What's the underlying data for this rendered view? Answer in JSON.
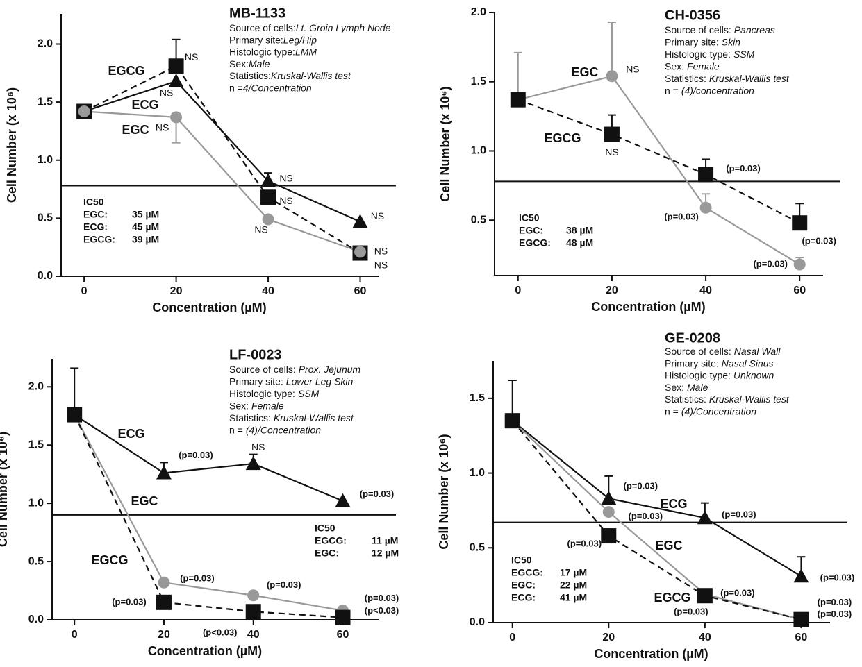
{
  "chart_data": [
    {
      "type": "line",
      "title": "MB-1133",
      "info": [
        {
          "label": "Source of cells:",
          "value": "Lt. Groin Lymph Node"
        },
        {
          "label": "Primary site:",
          "value": "Leg/Hip"
        },
        {
          "label": "Histologic type:",
          "value": "LMM"
        },
        {
          "label": "Sex:",
          "value": "Male"
        },
        {
          "label": "Statistics:",
          "value": "Kruskal-Wallis test"
        },
        {
          "label": "n =",
          "value": "4/Concentration"
        }
      ],
      "ic50_title": "IC50",
      "ic50": [
        {
          "name": "EGC:",
          "value": "35 µM"
        },
        {
          "name": "ECG:",
          "value": "45 µM"
        },
        {
          "name": "EGCG:",
          "value": "39 µM"
        }
      ],
      "x_label": "Concentration (µM)",
      "y_label": "Cell Number (x 10⁶)",
      "x": [
        0,
        20,
        40,
        60
      ],
      "series": [
        {
          "name": "EGCG",
          "color": "#111111",
          "marker": "square",
          "dash": true,
          "values": [
            1.42,
            1.81,
            0.68,
            0.2
          ],
          "errors": [
            null,
            0.23,
            null,
            null
          ],
          "point_labels": [
            null,
            "NS",
            "NS",
            "NS"
          ]
        },
        {
          "name": "ECG",
          "color": "#111111",
          "marker": "triangle",
          "dash": false,
          "values": [
            1.42,
            1.68,
            0.82,
            0.47
          ],
          "errors": [
            null,
            null,
            0.07,
            null
          ],
          "point_labels": [
            null,
            "NS",
            "NS",
            "NS"
          ]
        },
        {
          "name": "EGC",
          "color": "#999999",
          "marker": "circle",
          "dash": false,
          "error_side": "down",
          "values": [
            1.42,
            1.37,
            0.49,
            0.21
          ],
          "errors": [
            null,
            0.22,
            null,
            null
          ],
          "point_labels": [
            null,
            "NS",
            "NS",
            "NS"
          ]
        }
      ],
      "reference_line": 0.78,
      "xlim": [
        -5,
        64
      ],
      "ylim": [
        0,
        2.26
      ],
      "xticks": [
        0,
        20,
        40,
        60
      ],
      "yticks": [
        {
          "value": 0,
          "label": "0.0"
        },
        {
          "value": 0.5,
          "label": "0.5"
        },
        {
          "value": 1,
          "label": "1.0"
        },
        {
          "value": 1.5,
          "label": "1.5"
        },
        {
          "value": 2,
          "label": "2.0"
        }
      ]
    },
    {
      "type": "line",
      "title": "CH-0356",
      "info": [
        {
          "label": "Source of cells:",
          "value": "Pancreas"
        },
        {
          "label": "Primary site:",
          "value": "Skin"
        },
        {
          "label": "Histologic type:",
          "value": "SSM"
        },
        {
          "label": "Sex:",
          "value": "Female"
        },
        {
          "label": "Statistics:",
          "value": "Kruskal-Wallis test"
        },
        {
          "label": "n =",
          "value": "(4)/concentration"
        }
      ],
      "ic50_title": "IC50",
      "ic50": [
        {
          "name": "EGC:",
          "value": "38 µM"
        },
        {
          "name": "EGCG:",
          "value": "48 µM"
        }
      ],
      "x_label": "Concentration (µM)",
      "y_label": "Cell Number (x 10⁶)",
      "x": [
        0,
        20,
        40,
        60
      ],
      "series": [
        {
          "name": "EGC",
          "color": "#999999",
          "marker": "circle",
          "dash": false,
          "values": [
            1.37,
            1.54,
            0.59,
            0.18
          ],
          "errors": [
            0.34,
            0.39,
            0.1,
            0.05
          ],
          "point_labels": [
            null,
            "NS",
            "(p=0.03)",
            "(p=0.03)"
          ]
        },
        {
          "name": "EGCG",
          "color": "#111111",
          "marker": "square",
          "dash": true,
          "values": [
            1.37,
            1.12,
            0.83,
            0.48
          ],
          "errors": [
            null,
            0.14,
            0.11,
            0.14
          ],
          "point_labels": [
            null,
            "NS",
            "(p=0.03)",
            "(p=0.03)"
          ]
        }
      ],
      "reference_line": 0.78,
      "xlim": [
        -5,
        65
      ],
      "ylim": [
        0.1,
        2.0
      ],
      "xticks": [
        0,
        20,
        40,
        60
      ],
      "yticks": [
        {
          "value": 0.5,
          "label": "0.5"
        },
        {
          "value": 1,
          "label": "1.0"
        },
        {
          "value": 1.5,
          "label": "1.5"
        },
        {
          "value": 2,
          "label": "2.0"
        }
      ]
    },
    {
      "type": "line",
      "title": "LF-0023",
      "info": [
        {
          "label": "Source of cells:",
          "value": "Prox. Jejunum"
        },
        {
          "label": "Primary site:",
          "value": "Lower Leg Skin"
        },
        {
          "label": "Histologic type:",
          "value": "SSM"
        },
        {
          "label": "Sex:",
          "value": "Female"
        },
        {
          "label": "Statistics:",
          "value": "Kruskal-Wallis test"
        },
        {
          "label": "n =",
          "value": "(4)/Concentration"
        }
      ],
      "ic50_title": "IC50",
      "ic50": [
        {
          "name": "EGCG:",
          "value": "11 µM"
        },
        {
          "name": "EGC:",
          "value": "12 µM"
        }
      ],
      "x_label": "Concentration (µM)",
      "y_label": "Cell Number (x 10⁶)",
      "x": [
        0,
        20,
        40,
        60
      ],
      "series": [
        {
          "name": "ECG",
          "color": "#111111",
          "marker": "triangle",
          "dash": false,
          "values": [
            1.76,
            1.26,
            1.34,
            1.02
          ],
          "errors": [
            0.4,
            0.09,
            0.08,
            null
          ],
          "point_labels": [
            null,
            "(p=0.03)",
            "NS",
            "(p=0.03)"
          ]
        },
        {
          "name": "EGC",
          "color": "#999999",
          "marker": "circle",
          "dash": false,
          "values": [
            1.76,
            0.32,
            0.21,
            0.08
          ],
          "errors": [
            null,
            null,
            null,
            null
          ],
          "point_labels": [
            null,
            "(p=0.03)",
            "(p=0.03)",
            "(p=0.03)"
          ]
        },
        {
          "name": "EGCG",
          "color": "#111111",
          "marker": "square",
          "dash": true,
          "values": [
            1.76,
            0.15,
            0.07,
            0.02
          ],
          "errors": [
            null,
            null,
            null,
            null
          ],
          "point_labels": [
            null,
            "(p=0.03)",
            "(p<0.03)",
            "(p<0.03)"
          ]
        }
      ],
      "reference_line": 0.9,
      "xlim": [
        -5,
        68
      ],
      "ylim": [
        0,
        2.24
      ],
      "xticks": [
        0,
        20,
        40,
        60
      ],
      "yticks": [
        {
          "value": 0,
          "label": "0.0"
        },
        {
          "value": 0.5,
          "label": "0.5"
        },
        {
          "value": 1,
          "label": "1.0"
        },
        {
          "value": 1.5,
          "label": "1.5"
        },
        {
          "value": 2,
          "label": "2.0"
        }
      ]
    },
    {
      "type": "line",
      "title": "GE-0208",
      "info": [
        {
          "label": "Source of cells:",
          "value": "Nasal Wall"
        },
        {
          "label": "Primary site:",
          "value": "Nasal Sinus"
        },
        {
          "label": "Histologic type:",
          "value": "Unknown"
        },
        {
          "label": "Sex:",
          "value": "Male"
        },
        {
          "label": "Statistics:",
          "value": "Kruskal-Wallis test"
        },
        {
          "label": "n =",
          "value": "(4)/Concentration"
        }
      ],
      "ic50_title": "IC50",
      "ic50": [
        {
          "name": "EGCG:",
          "value": "17 µM"
        },
        {
          "name": "EGC:",
          "value": "22 µM"
        },
        {
          "name": "ECG:",
          "value": "41 µM"
        }
      ],
      "x_label": "Concentration (µM)",
      "y_label": "Cell Number (x 10⁶)",
      "x": [
        0,
        20,
        40,
        60
      ],
      "series": [
        {
          "name": "ECG",
          "color": "#111111",
          "marker": "triangle",
          "dash": false,
          "values": [
            1.35,
            0.83,
            0.7,
            0.31
          ],
          "errors": [
            0.27,
            0.15,
            0.1,
            0.13
          ],
          "point_labels": [
            null,
            "(p=0.03)",
            "(p=0.03)",
            "(p=0.03)"
          ]
        },
        {
          "name": "EGC",
          "color": "#999999",
          "marker": "circle",
          "dash": false,
          "values": [
            1.35,
            0.74,
            0.19,
            0.02
          ],
          "errors": [
            null,
            null,
            null,
            null
          ],
          "point_labels": [
            null,
            "(p=0.03)",
            "(p=0.03)",
            "(p=0.03)"
          ]
        },
        {
          "name": "EGCG",
          "color": "#111111",
          "marker": "square",
          "dash": true,
          "values": [
            1.35,
            0.58,
            0.18,
            0.02
          ],
          "errors": [
            null,
            null,
            null,
            null
          ],
          "point_labels": [
            null,
            "(p=0.03)",
            "(p=0.03)",
            "(p=0.03)"
          ]
        }
      ],
      "reference_line": 0.67,
      "xlim": [
        -4,
        66
      ],
      "ylim": [
        0,
        1.75
      ],
      "xticks": [
        0,
        20,
        40,
        60
      ],
      "yticks": [
        {
          "value": 0,
          "label": "0.0"
        },
        {
          "value": 0.5,
          "label": "0.5"
        },
        {
          "value": 1,
          "label": "1.0"
        },
        {
          "value": 1.5,
          "label": "1.5"
        }
      ]
    }
  ]
}
